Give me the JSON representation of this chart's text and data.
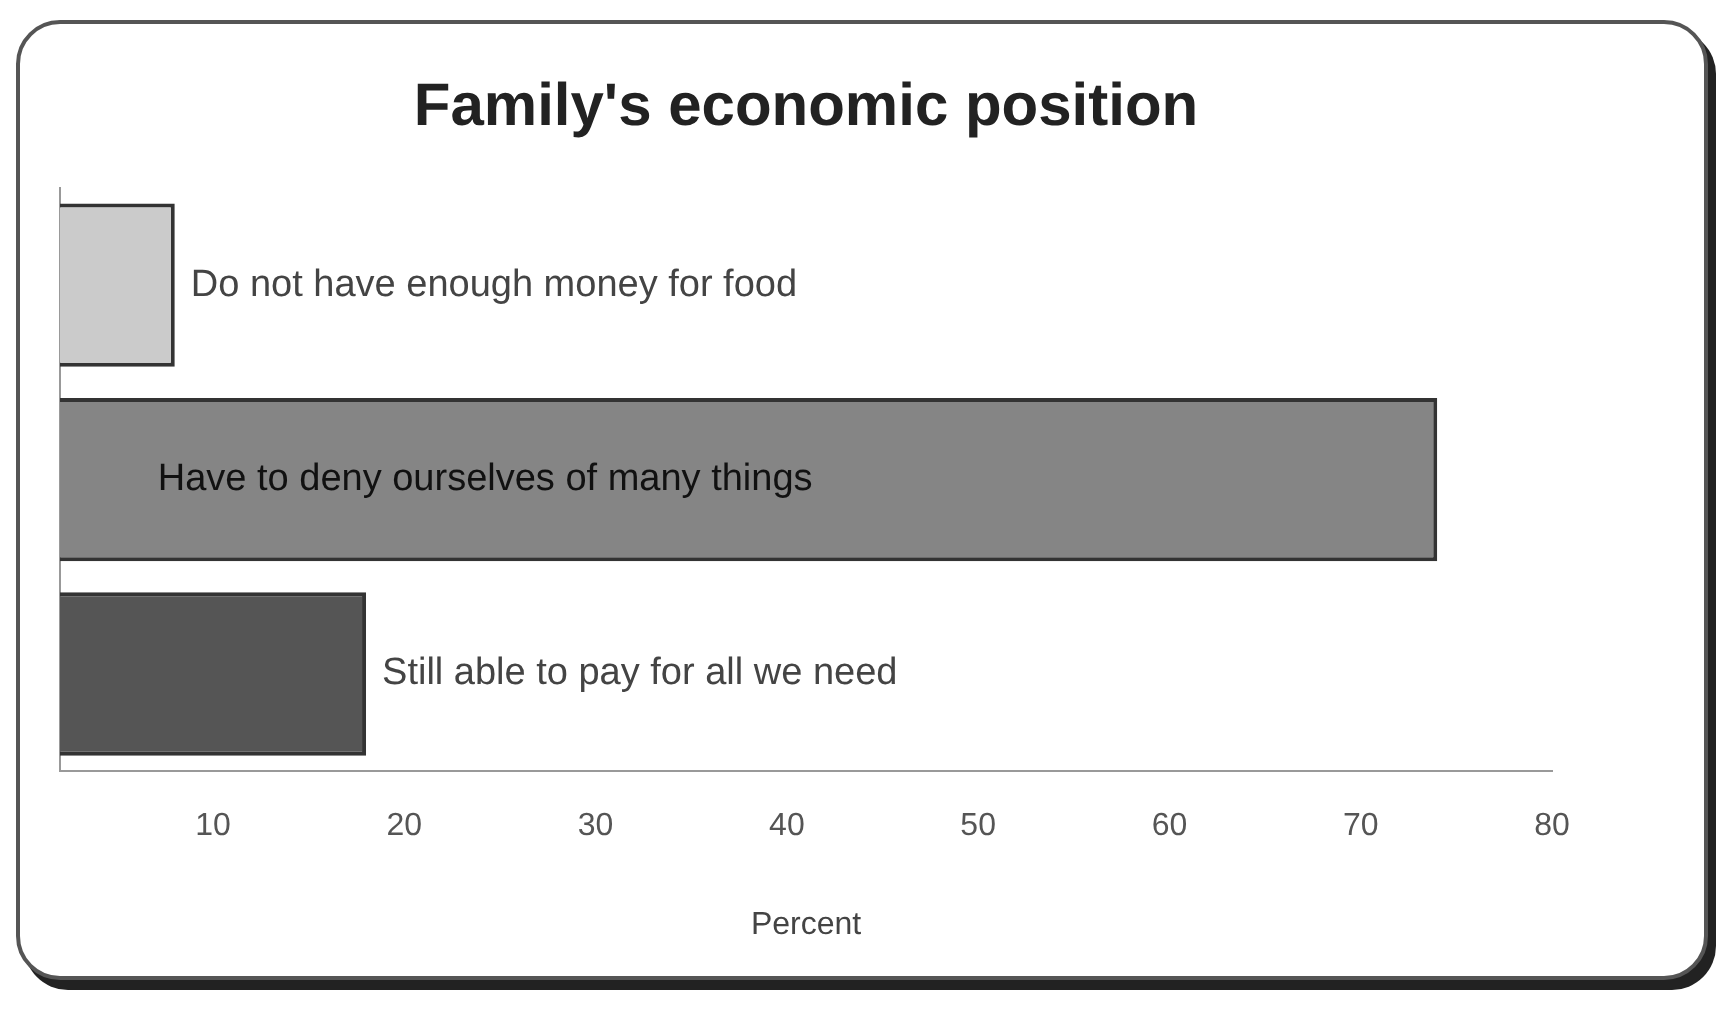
{
  "chart_data": {
    "type": "bar",
    "orientation": "horizontal",
    "title": "Family's economic position",
    "xlabel": "Percent",
    "categories": [
      "Do not have enough money for food",
      "Have to deny ourselves of many things",
      "Still able to pay for all we need"
    ],
    "values": [
      8,
      74,
      18
    ],
    "colors": [
      "#cbcbcb",
      "#858585",
      "#555555"
    ],
    "xlim": [
      2,
      80
    ],
    "xticks": [
      10,
      20,
      30,
      40,
      50,
      60,
      70,
      80
    ],
    "grid": false,
    "legend": false
  }
}
